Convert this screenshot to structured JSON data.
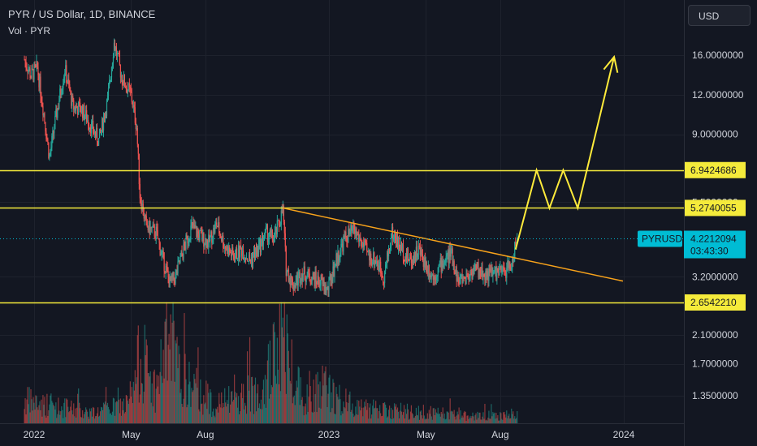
{
  "header": {
    "title": "PYR / US Dollar, 1D, BINANCE",
    "volume_label": "Vol · PYR",
    "currency_button": "USD"
  },
  "chart_data": {
    "type": "candlestick",
    "symbol": "PYRUSD",
    "y_scale": "log",
    "y_ticks": [
      "16.0000000",
      "12.0000000",
      "9.0000000",
      "5.5000000",
      "3.2000000",
      "2.1000000",
      "1.7000000",
      "1.3500000"
    ],
    "x_ticks": [
      "2022",
      "May",
      "Aug",
      "2023",
      "May",
      "Aug",
      "2024"
    ],
    "horizontal_levels": [
      {
        "label": "6.9424686",
        "value": 6.9424686,
        "color": "#f5eb3b"
      },
      {
        "label": "5.2740055",
        "value": 5.2740055,
        "color": "#f5eb3b"
      },
      {
        "label": "2.6542210",
        "value": 2.654221,
        "color": "#f5eb3b"
      }
    ],
    "last_price": {
      "symbol": "PYRUSD",
      "value": "4.2212094",
      "countdown": "03:43:30",
      "color": "#00bcd4"
    },
    "trendline": {
      "from": [
        "2022-11-05",
        5.27
      ],
      "to": [
        "2023-12-31",
        3.1
      ],
      "color": "#f7a21b"
    },
    "projection": {
      "color": "#ffeb3b",
      "points": [
        [
          "2023-08-20",
          3.9
        ],
        [
          "2023-09-15",
          6.94
        ],
        [
          "2023-10-01",
          5.27
        ],
        [
          "2023-10-18",
          6.94
        ],
        [
          "2023-11-05",
          5.27
        ],
        [
          "2023-12-20",
          15.8
        ]
      ]
    },
    "price_path": [
      [
        "2021-12-20",
        15.5
      ],
      [
        "2021-12-28",
        13.8
      ],
      [
        "2022-01-05",
        14.6
      ],
      [
        "2022-01-13",
        10.5
      ],
      [
        "2022-01-20",
        7.6
      ],
      [
        "2022-01-28",
        10.2
      ],
      [
        "2022-02-08",
        14.5
      ],
      [
        "2022-02-18",
        11.0
      ],
      [
        "2022-03-01",
        10.8
      ],
      [
        "2022-03-12",
        9.6
      ],
      [
        "2022-03-22",
        8.6
      ],
      [
        "2022-04-02",
        11.5
      ],
      [
        "2022-04-10",
        17.5
      ],
      [
        "2022-04-20",
        13.5
      ],
      [
        "2022-05-01",
        12.0
      ],
      [
        "2022-05-08",
        9.5
      ],
      [
        "2022-05-12",
        5.8
      ],
      [
        "2022-05-20",
        4.6
      ],
      [
        "2022-06-01",
        4.4
      ],
      [
        "2022-06-10",
        3.6
      ],
      [
        "2022-06-18",
        3.05
      ],
      [
        "2022-06-25",
        3.2
      ],
      [
        "2022-07-05",
        3.9
      ],
      [
        "2022-07-15",
        4.6
      ],
      [
        "2022-07-25",
        4.3
      ],
      [
        "2022-08-05",
        4.1
      ],
      [
        "2022-08-15",
        4.7
      ],
      [
        "2022-08-25",
        4.0
      ],
      [
        "2022-09-05",
        3.7
      ],
      [
        "2022-09-15",
        3.9
      ],
      [
        "2022-09-25",
        3.6
      ],
      [
        "2022-10-05",
        3.9
      ],
      [
        "2022-10-15",
        4.4
      ],
      [
        "2022-10-25",
        4.2
      ],
      [
        "2022-11-05",
        5.2
      ],
      [
        "2022-11-09",
        3.4
      ],
      [
        "2022-11-18",
        3.0
      ],
      [
        "2022-11-28",
        3.3
      ],
      [
        "2022-12-08",
        3.2
      ],
      [
        "2022-12-20",
        3.1
      ],
      [
        "2022-12-30",
        2.9
      ],
      [
        "2023-01-10",
        3.6
      ],
      [
        "2023-01-20",
        4.2
      ],
      [
        "2023-02-01",
        4.5
      ],
      [
        "2023-02-10",
        4.1
      ],
      [
        "2023-02-20",
        3.7
      ],
      [
        "2023-03-01",
        3.6
      ],
      [
        "2023-03-10",
        3.2
      ],
      [
        "2023-03-20",
        4.4
      ],
      [
        "2023-04-01",
        3.9
      ],
      [
        "2023-04-12",
        3.6
      ],
      [
        "2023-04-22",
        3.9
      ],
      [
        "2023-05-01",
        3.5
      ],
      [
        "2023-05-10",
        3.2
      ],
      [
        "2023-05-20",
        3.5
      ],
      [
        "2023-06-01",
        3.8
      ],
      [
        "2023-06-10",
        3.1
      ],
      [
        "2023-06-20",
        3.2
      ],
      [
        "2023-07-01",
        3.4
      ],
      [
        "2023-07-12",
        3.25
      ],
      [
        "2023-07-25",
        3.3
      ],
      [
        "2023-08-05",
        3.3
      ],
      [
        "2023-08-15",
        3.5
      ],
      [
        "2023-08-22",
        4.2
      ]
    ],
    "volume_path": [
      [
        "2021-12-20",
        0.25
      ],
      [
        "2022-02-01",
        0.18
      ],
      [
        "2022-03-15",
        0.12
      ],
      [
        "2022-05-01",
        0.22
      ],
      [
        "2022-05-12",
        0.75
      ],
      [
        "2022-06-01",
        0.35
      ],
      [
        "2022-06-15",
        0.95
      ],
      [
        "2022-07-01",
        0.5
      ],
      [
        "2022-08-15",
        0.2
      ],
      [
        "2022-10-01",
        0.35
      ],
      [
        "2022-10-20",
        0.6
      ],
      [
        "2022-11-08",
        1.0
      ],
      [
        "2022-11-12",
        0.7
      ],
      [
        "2022-12-01",
        0.3
      ],
      [
        "2022-12-20",
        0.45
      ],
      [
        "2023-01-15",
        0.25
      ],
      [
        "2023-03-01",
        0.15
      ],
      [
        "2023-05-01",
        0.12
      ],
      [
        "2023-07-01",
        0.08
      ],
      [
        "2023-08-22",
        0.1
      ]
    ]
  }
}
